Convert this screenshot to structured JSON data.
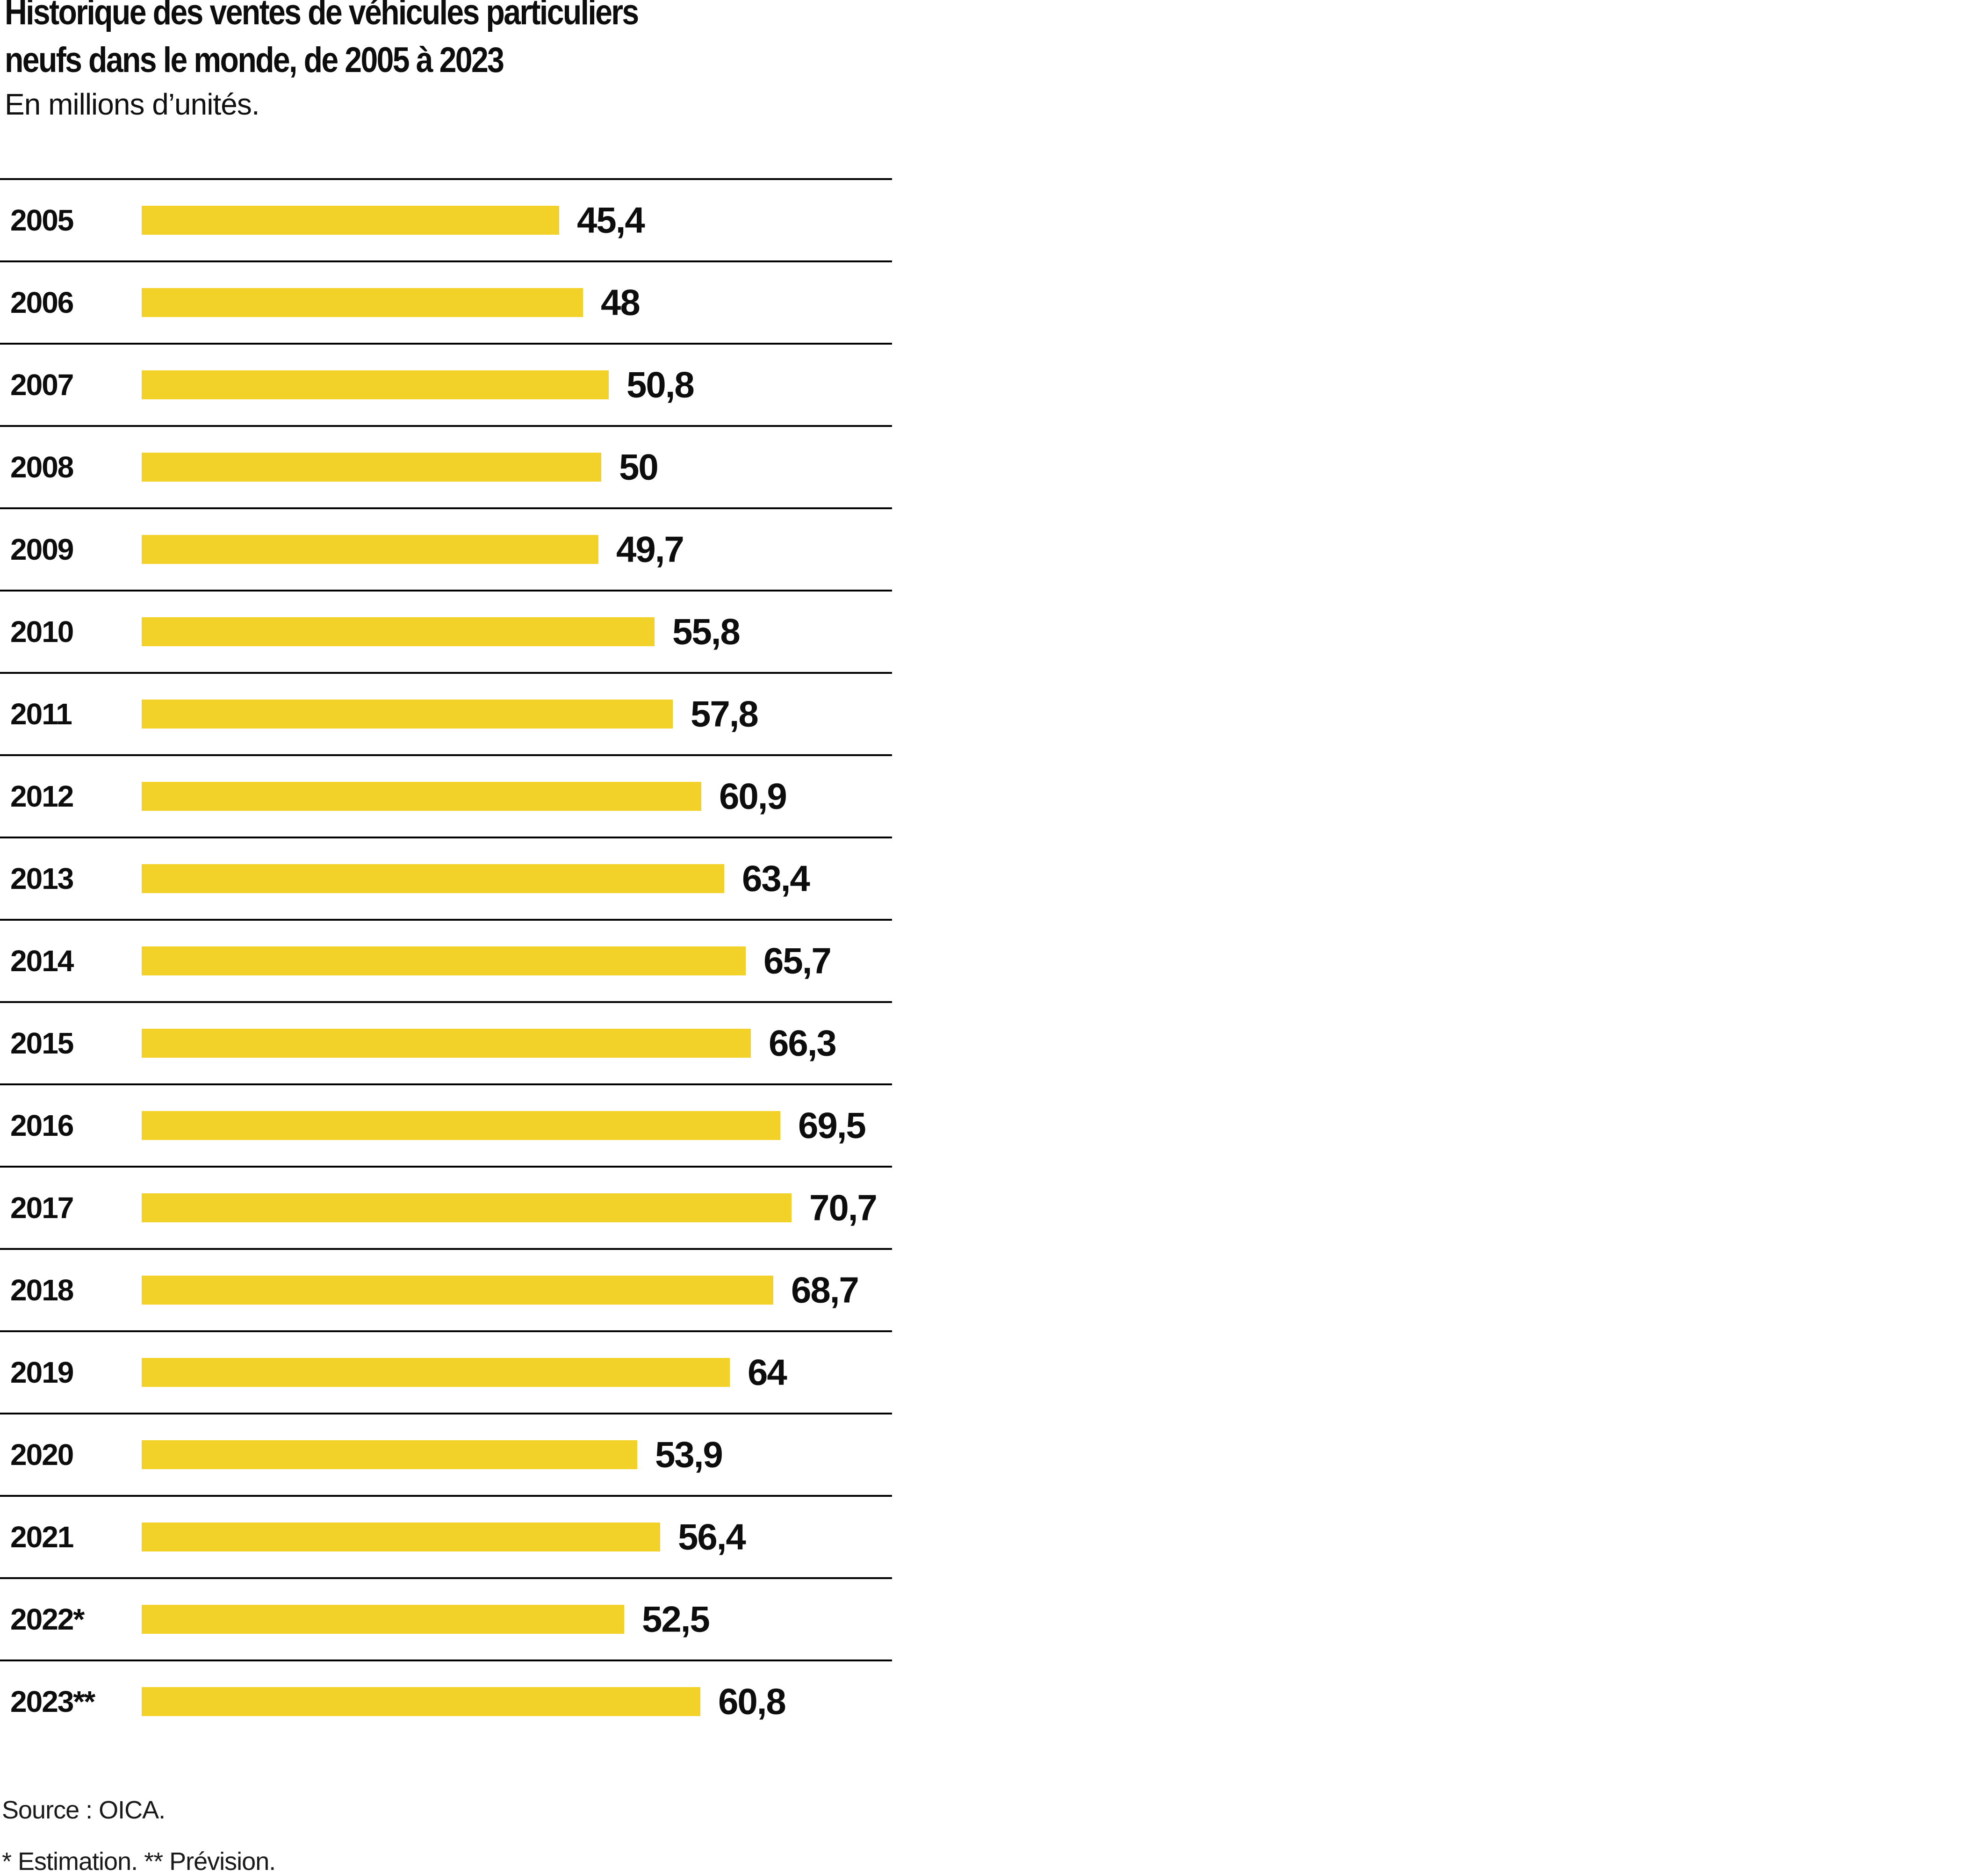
{
  "header": {
    "title_line1": "Historique des ventes de véhicules particuliers",
    "title_line2": "neufs dans le monde, de 2005 à 2023",
    "subtitle": "En millions d’unités."
  },
  "chart_data": {
    "type": "bar",
    "orientation": "horizontal",
    "title": "Historique des ventes de véhicules particuliers neufs dans le monde, de 2005 à 2023",
    "unit_label": "En millions d’unités.",
    "categories": [
      "2005",
      "2006",
      "2007",
      "2008",
      "2009",
      "2010",
      "2011",
      "2012",
      "2013",
      "2014",
      "2015",
      "2016",
      "2017",
      "2018",
      "2019",
      "2020",
      "2021",
      "2022*",
      "2023**"
    ],
    "values": [
      45.4,
      48,
      50.8,
      50,
      49.7,
      55.8,
      57.8,
      60.9,
      63.4,
      65.7,
      66.3,
      69.5,
      70.7,
      68.7,
      64,
      53.9,
      56.4,
      52.5,
      60.8
    ],
    "value_labels": [
      "45,4",
      "48",
      "50,8",
      "50",
      "49,7",
      "55,8",
      "57,8",
      "60,9",
      "63,4",
      "65,7",
      "66,3",
      "69,5",
      "70,7",
      "68,7",
      "64",
      "53,9",
      "56,4",
      "52,5",
      "60,8"
    ],
    "xlim": [
      0,
      70.7
    ],
    "bar_color": "#F2D129",
    "separator_color": "#000000",
    "grid": "horizontal-row-separators",
    "legend": "none"
  },
  "footer": {
    "source": "Source : OICA.",
    "notes": "* Estimation. ** Prévision."
  }
}
